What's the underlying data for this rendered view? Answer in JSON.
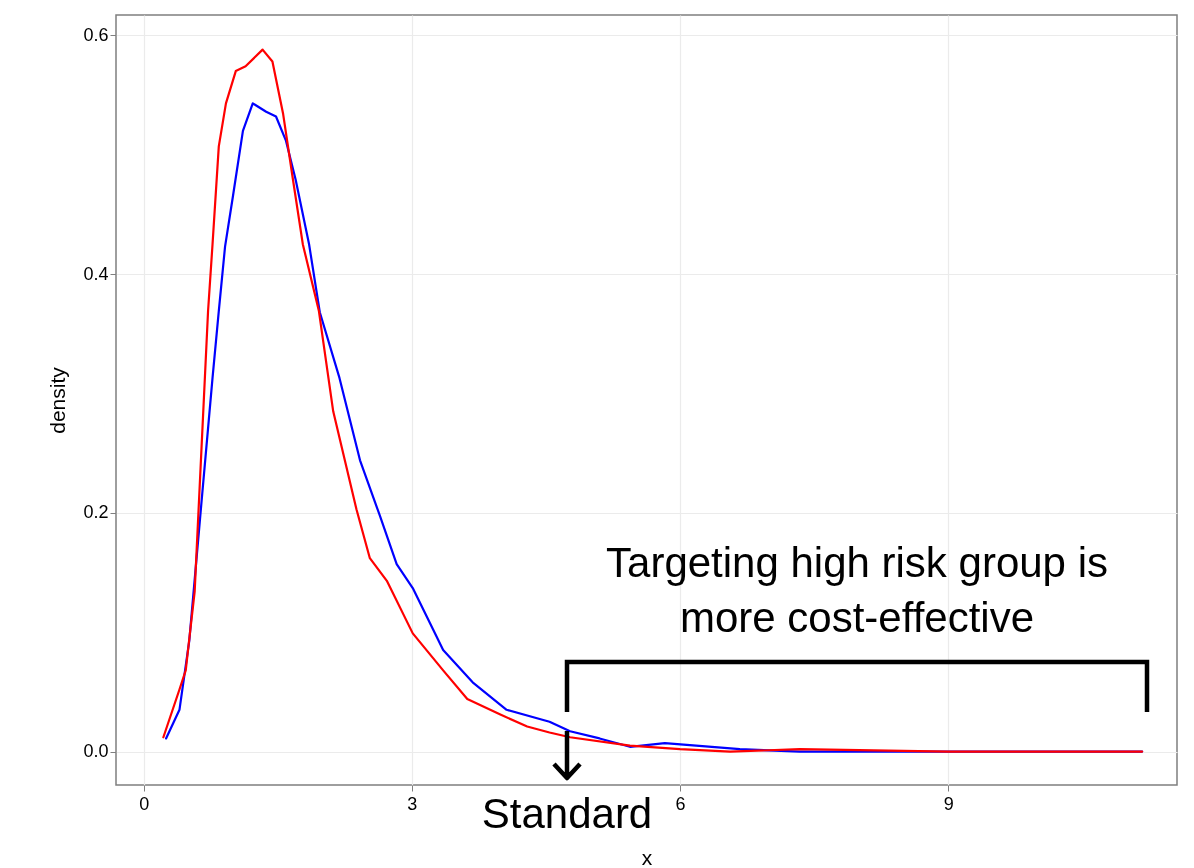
{
  "chart_data": {
    "type": "line",
    "xlabel": "x",
    "ylabel": "density",
    "xlim": [
      -0.31,
      11.56
    ],
    "ylim": [
      -0.028,
      0.617
    ],
    "xticks": [
      0,
      3,
      6,
      9
    ],
    "yticks": [
      {
        "value": 0,
        "label": "0.0"
      },
      0.2,
      0.4,
      0.6
    ],
    "grid": true,
    "marker": "none",
    "line_style": "solid",
    "series": [
      {
        "color": "#0000ff",
        "x": [
          0.25,
          0.4,
          0.51,
          0.63,
          0.77,
          0.84,
          0.91,
          1.0,
          1.11,
          1.22,
          1.37,
          1.48,
          1.59,
          1.7,
          1.85,
          1.97,
          2.19,
          2.42,
          2.64,
          2.83,
          3.01,
          3.35,
          3.68,
          4.06,
          4.54,
          4.77,
          5.1,
          5.44,
          5.83,
          6.67,
          7.34,
          9.0,
          11.17
        ],
        "values": [
          0.011,
          0.035,
          0.093,
          0.195,
          0.313,
          0.369,
          0.423,
          0.466,
          0.52,
          0.543,
          0.536,
          0.532,
          0.512,
          0.479,
          0.425,
          0.368,
          0.313,
          0.244,
          0.198,
          0.157,
          0.137,
          0.085,
          0.058,
          0.035,
          0.025,
          0.017,
          0.011,
          0.004,
          0.007,
          0.002,
          0,
          0,
          0
        ]
      },
      {
        "color": "#ff0000",
        "x": [
          0.22,
          0.4,
          0.47,
          0.57,
          0.72,
          0.77,
          0.84,
          0.92,
          1.03,
          1.14,
          1.33,
          1.44,
          1.56,
          1.67,
          1.78,
          1.96,
          2.12,
          2.38,
          2.53,
          2.72,
          3.01,
          3.35,
          3.62,
          3.99,
          4.29,
          4.54,
          4.77,
          5.44,
          6.0,
          6.56,
          7.34,
          9.0,
          11.17
        ],
        "values": [
          0.012,
          0.052,
          0.068,
          0.134,
          0.369,
          0.425,
          0.507,
          0.543,
          0.57,
          0.574,
          0.588,
          0.578,
          0.534,
          0.479,
          0.425,
          0.369,
          0.285,
          0.203,
          0.162,
          0.143,
          0.099,
          0.068,
          0.044,
          0.031,
          0.021,
          0.016,
          0.012,
          0.005,
          0.002,
          0,
          0.002,
          0,
          0
        ]
      }
    ],
    "annotations": [
      "Standard",
      "Targeting high risk group is more cost-effective"
    ]
  }
}
